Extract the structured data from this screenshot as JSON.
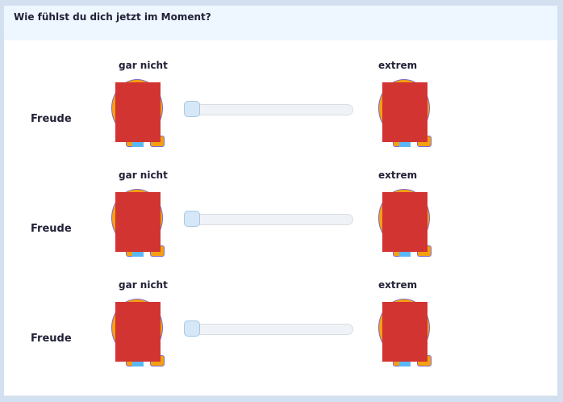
{
  "question": "Wie fühlst du dich jetzt im Moment?",
  "rows": [
    {
      "item": "Freude",
      "low_label": "gar nicht",
      "high_label": "extrem",
      "value": 0
    },
    {
      "item": "Freude",
      "low_label": "gar nicht",
      "high_label": "extrem",
      "value": 0
    },
    {
      "item": "Freude",
      "low_label": "gar nicht",
      "high_label": "extrem",
      "value": 0
    }
  ],
  "colors": {
    "redacted": "#d23431",
    "header_bg": "#eef6ff"
  }
}
